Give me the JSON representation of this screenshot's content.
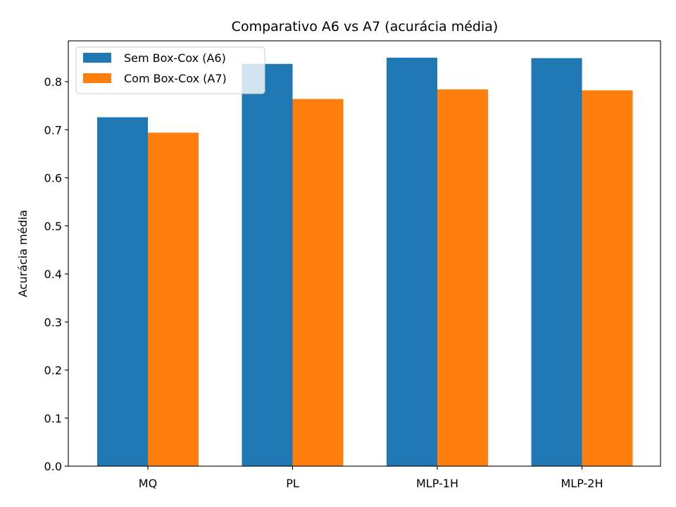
{
  "chart_data": {
    "type": "bar",
    "title": "Comparativo A6 vs A7 (acurácia média)",
    "xlabel": "",
    "ylabel": "Acurácia média",
    "categories": [
      "MQ",
      "PL",
      "MLP-1H",
      "MLP-2H"
    ],
    "series": [
      {
        "name": "Sem Box-Cox (A6)",
        "color": "#1f77b4",
        "values": [
          0.726,
          0.837,
          0.85,
          0.849
        ]
      },
      {
        "name": "Com Box-Cox (A7)",
        "color": "#ff7f0e",
        "values": [
          0.694,
          0.764,
          0.784,
          0.782
        ]
      }
    ],
    "ylim": [
      0,
      0.885
    ],
    "yticks": [
      0.0,
      0.1,
      0.2,
      0.3,
      0.4,
      0.5,
      0.6,
      0.7,
      0.8
    ],
    "ytick_labels": [
      "0.0",
      "0.1",
      "0.2",
      "0.3",
      "0.4",
      "0.5",
      "0.6",
      "0.7",
      "0.8"
    ],
    "grid": false,
    "legend_position": "top-left"
  }
}
